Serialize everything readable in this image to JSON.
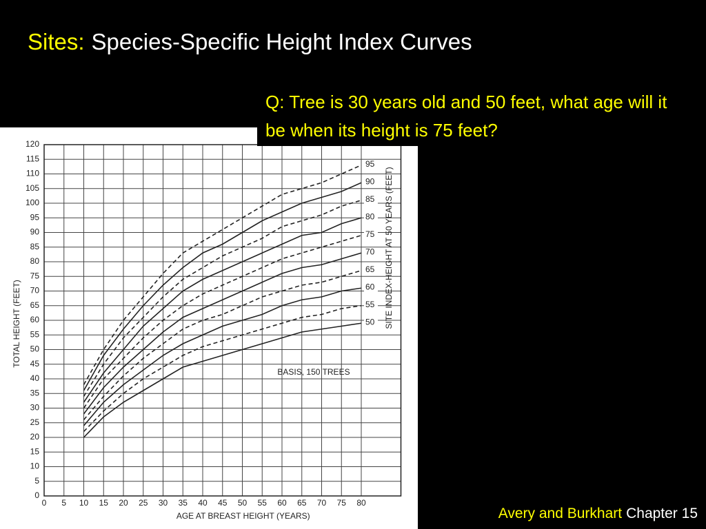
{
  "slide": {
    "title_prefix": "Sites:",
    "title": "Species-Specific Height Index Curves",
    "question": "Q: Tree is 30 years old and 50 feet, what age will it be when its height is 75 feet?",
    "footer_author": "Avery and Burkhart",
    "footer_chapter": "Chapter 15"
  },
  "chart_data": {
    "type": "line",
    "x_label": "AGE AT BREAST HEIGHT (YEARS)",
    "y_label": "TOTAL HEIGHT (FEET)",
    "y2_label": "SITE INDEX-HEIGHT AT 50 YEARS (FEET)",
    "annotation": "BASIS, 150 TREES",
    "x": [
      10,
      15,
      20,
      25,
      30,
      35,
      40,
      45,
      50,
      55,
      60,
      65,
      70,
      75,
      80
    ],
    "series": [
      {
        "name": "50",
        "dashed": false,
        "values": [
          20,
          27,
          32,
          36,
          40,
          44,
          46,
          48,
          50,
          52,
          54,
          56,
          57,
          58,
          59
        ]
      },
      {
        "name": "55",
        "dashed": true,
        "values": [
          22,
          29,
          35,
          40,
          44,
          48,
          51,
          53,
          55,
          57,
          59,
          61,
          62,
          64,
          65
        ]
      },
      {
        "name": "60",
        "dashed": false,
        "values": [
          24,
          32,
          38,
          43,
          48,
          52,
          55,
          58,
          60,
          62,
          65,
          67,
          68,
          70,
          71
        ]
      },
      {
        "name": "65",
        "dashed": true,
        "values": [
          26,
          34,
          41,
          47,
          52,
          57,
          60,
          62,
          65,
          68,
          70,
          72,
          73,
          75,
          77
        ]
      },
      {
        "name": "70",
        "dashed": false,
        "values": [
          28,
          37,
          44,
          50,
          56,
          61,
          64,
          67,
          70,
          73,
          76,
          78,
          79,
          81,
          83
        ]
      },
      {
        "name": "75",
        "dashed": true,
        "values": [
          30,
          40,
          47,
          54,
          60,
          65,
          69,
          72,
          75,
          78,
          81,
          83,
          85,
          87,
          89
        ]
      },
      {
        "name": "80",
        "dashed": false,
        "values": [
          32,
          42,
          50,
          58,
          64,
          70,
          74,
          77,
          80,
          83,
          86,
          89,
          90,
          93,
          95
        ]
      },
      {
        "name": "85",
        "dashed": true,
        "values": [
          34,
          45,
          54,
          61,
          68,
          74,
          78,
          82,
          85,
          88,
          92,
          94,
          96,
          99,
          101
        ]
      },
      {
        "name": "90",
        "dashed": false,
        "values": [
          36,
          48,
          57,
          65,
          72,
          78,
          83,
          86,
          90,
          94,
          97,
          100,
          102,
          104,
          107
        ]
      },
      {
        "name": "95",
        "dashed": true,
        "values": [
          38,
          50,
          60,
          68,
          76,
          83,
          87,
          91,
          95,
          99,
          103,
          105,
          107,
          110,
          113
        ]
      }
    ],
    "color": "#222222",
    "xlim": [
      0,
      90
    ],
    "xticks": [
      0,
      5,
      10,
      15,
      20,
      25,
      30,
      35,
      40,
      45,
      50,
      55,
      60,
      65,
      70,
      75,
      80
    ],
    "ylim": [
      0,
      120
    ],
    "yticks": [
      0,
      5,
      10,
      15,
      20,
      25,
      30,
      35,
      40,
      45,
      50,
      55,
      60,
      65,
      70,
      75,
      80,
      85,
      90,
      95,
      100,
      105,
      110,
      115,
      120
    ],
    "grid": true
  }
}
